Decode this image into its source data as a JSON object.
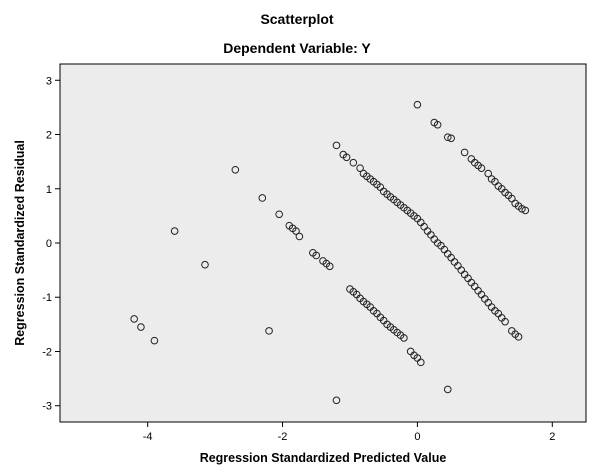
{
  "chart_data": {
    "type": "scatter",
    "title": "Scatterplot",
    "subtitle": "Dependent Variable: Y",
    "xlabel": "Regression Standardized Predicted Value",
    "ylabel": "Regression Standardized Residual",
    "xlim": [
      -5.3,
      2.5
    ],
    "ylim": [
      -3.3,
      3.3
    ],
    "xticks": [
      -4,
      -2,
      0,
      2
    ],
    "yticks": [
      -3,
      -2,
      -1,
      0,
      1,
      2,
      3
    ],
    "grid": false,
    "legend": "none",
    "colors": {
      "plot_background": "#ececec",
      "marker_stroke": "#222222",
      "frame": "#000000"
    },
    "series": [
      {
        "points": [
          [
            -4.2,
            -1.4
          ],
          [
            -4.1,
            -1.55
          ],
          [
            -3.9,
            -1.8
          ],
          [
            -3.6,
            0.22
          ],
          [
            -3.15,
            -0.4
          ],
          [
            -2.7,
            1.35
          ],
          [
            -2.3,
            0.83
          ],
          [
            -2.2,
            -1.62
          ],
          [
            -2.05,
            0.53
          ],
          [
            -1.9,
            0.32
          ],
          [
            -1.85,
            0.27
          ],
          [
            -1.8,
            0.22
          ],
          [
            -1.75,
            0.12
          ],
          [
            -1.55,
            -0.18
          ],
          [
            -1.5,
            -0.23
          ],
          [
            -1.4,
            -0.33
          ],
          [
            -1.35,
            -0.38
          ],
          [
            -1.3,
            -0.43
          ],
          [
            -1.2,
            -2.9
          ],
          [
            -1.2,
            1.8
          ],
          [
            -1.1,
            1.63
          ],
          [
            -1.05,
            1.58
          ],
          [
            -0.95,
            1.48
          ],
          [
            -0.85,
            1.38
          ],
          [
            -0.8,
            1.28
          ],
          [
            -0.75,
            1.23
          ],
          [
            -0.7,
            1.18
          ],
          [
            -0.65,
            1.13
          ],
          [
            -0.6,
            1.08
          ],
          [
            -0.55,
            1.03
          ],
          [
            -0.5,
            0.95
          ],
          [
            -0.45,
            0.9
          ],
          [
            -0.4,
            0.85
          ],
          [
            -0.35,
            0.8
          ],
          [
            -0.3,
            0.75
          ],
          [
            -0.25,
            0.7
          ],
          [
            -0.2,
            0.65
          ],
          [
            -0.15,
            0.6
          ],
          [
            -0.1,
            0.55
          ],
          [
            -0.05,
            0.5
          ],
          [
            0.0,
            0.45
          ],
          [
            0.05,
            0.38
          ],
          [
            0.1,
            0.3
          ],
          [
            0.15,
            0.22
          ],
          [
            0.2,
            0.15
          ],
          [
            0.25,
            0.07
          ],
          [
            0.3,
            0.0
          ],
          [
            0.35,
            -0.05
          ],
          [
            0.4,
            -0.12
          ],
          [
            0.45,
            -0.2
          ],
          [
            0.5,
            -0.27
          ],
          [
            0.55,
            -0.35
          ],
          [
            0.6,
            -0.42
          ],
          [
            0.65,
            -0.5
          ],
          [
            0.7,
            -0.58
          ],
          [
            0.75,
            -0.65
          ],
          [
            0.8,
            -0.73
          ],
          [
            0.85,
            -0.8
          ],
          [
            0.9,
            -0.88
          ],
          [
            0.95,
            -0.95
          ],
          [
            1.0,
            -1.03
          ],
          [
            1.05,
            -1.1
          ],
          [
            1.1,
            -1.18
          ],
          [
            1.15,
            -1.25
          ],
          [
            1.2,
            -1.3
          ],
          [
            1.25,
            -1.38
          ],
          [
            1.3,
            -1.45
          ],
          [
            1.4,
            -1.62
          ],
          [
            1.45,
            -1.68
          ],
          [
            1.5,
            -1.73
          ],
          [
            -1.0,
            -0.85
          ],
          [
            -0.95,
            -0.9
          ],
          [
            -0.9,
            -0.95
          ],
          [
            -0.85,
            -1.02
          ],
          [
            -0.8,
            -1.08
          ],
          [
            -0.75,
            -1.13
          ],
          [
            -0.7,
            -1.18
          ],
          [
            -0.65,
            -1.25
          ],
          [
            -0.6,
            -1.3
          ],
          [
            -0.55,
            -1.37
          ],
          [
            -0.5,
            -1.43
          ],
          [
            -0.45,
            -1.5
          ],
          [
            -0.4,
            -1.55
          ],
          [
            -0.35,
            -1.6
          ],
          [
            -0.3,
            -1.65
          ],
          [
            -0.25,
            -1.7
          ],
          [
            -0.2,
            -1.75
          ],
          [
            -0.1,
            -2.0
          ],
          [
            -0.05,
            -2.07
          ],
          [
            0.0,
            -2.12
          ],
          [
            0.05,
            -2.2
          ],
          [
            0.45,
            -2.7
          ],
          [
            0.0,
            2.55
          ],
          [
            0.25,
            2.22
          ],
          [
            0.3,
            2.18
          ],
          [
            0.45,
            1.95
          ],
          [
            0.5,
            1.93
          ],
          [
            0.7,
            1.67
          ],
          [
            0.8,
            1.55
          ],
          [
            0.85,
            1.48
          ],
          [
            0.9,
            1.43
          ],
          [
            0.95,
            1.38
          ],
          [
            1.05,
            1.28
          ],
          [
            1.1,
            1.18
          ],
          [
            1.15,
            1.13
          ],
          [
            1.2,
            1.05
          ],
          [
            1.25,
            1.0
          ],
          [
            1.3,
            0.93
          ],
          [
            1.35,
            0.88
          ],
          [
            1.4,
            0.82
          ],
          [
            1.45,
            0.73
          ],
          [
            1.5,
            0.68
          ],
          [
            1.55,
            0.63
          ],
          [
            1.6,
            0.6
          ]
        ]
      }
    ]
  }
}
